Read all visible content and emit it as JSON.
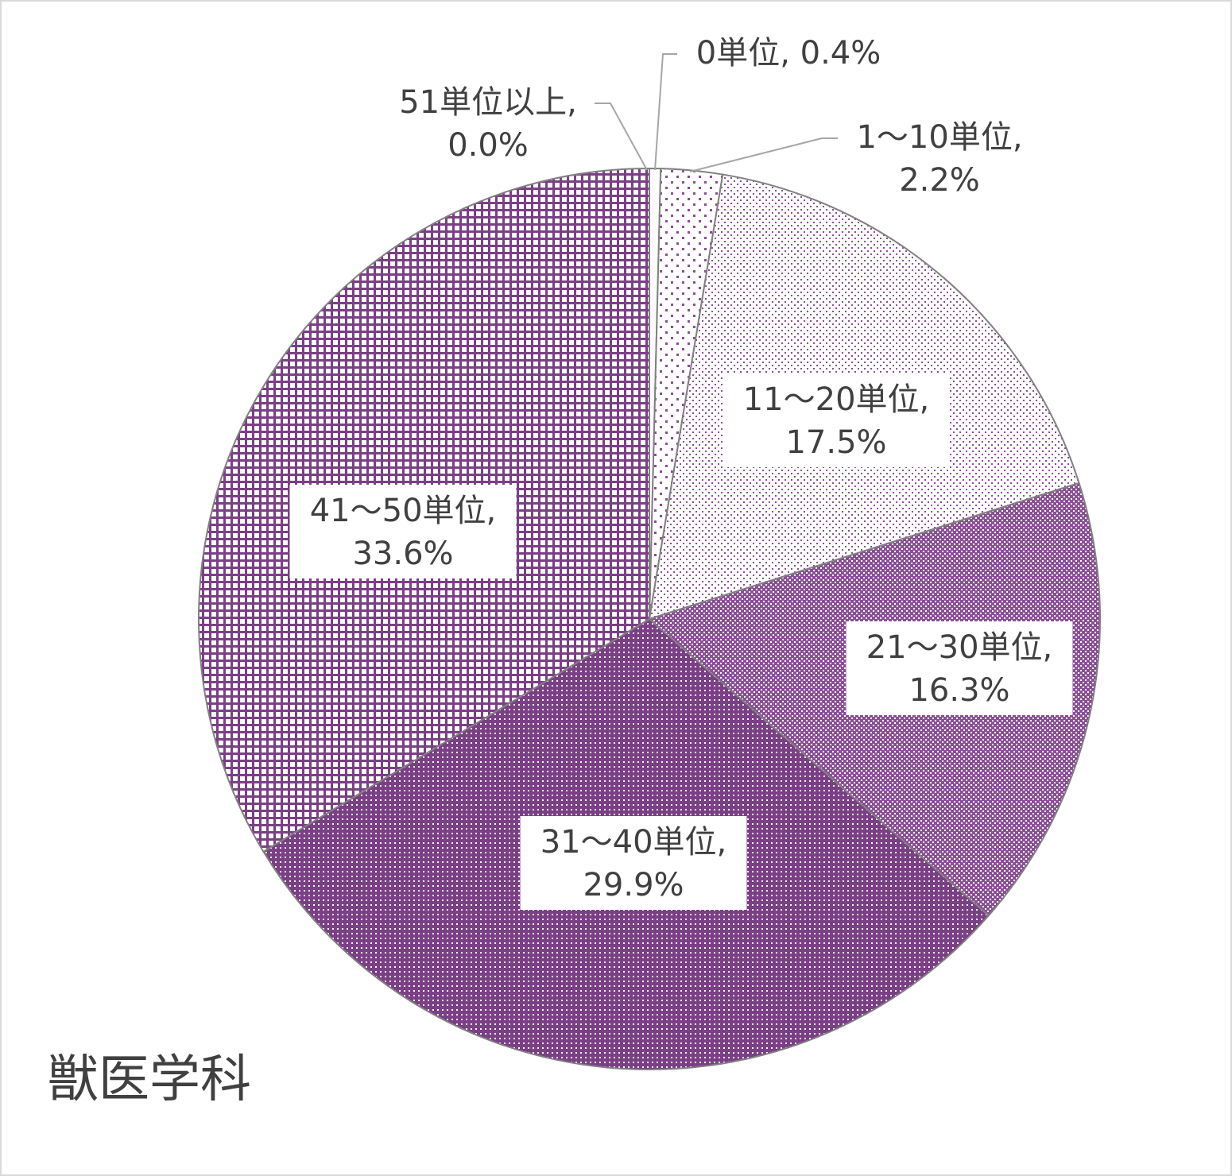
{
  "chart_data": {
    "type": "pie",
    "title": "",
    "department": "獣医学科",
    "unit": "%",
    "slices": [
      {
        "name": "0単位",
        "value": 0.4,
        "value_label": "0.4%",
        "pattern": "pat-white"
      },
      {
        "name": "1～10単位",
        "value": 2.2,
        "value_label": "2.2%",
        "pattern": "pat-sparse"
      },
      {
        "name": "11～20単位",
        "value": 17.5,
        "value_label": "17.5%",
        "pattern": "pat-fine"
      },
      {
        "name": "21～30単位",
        "value": 16.3,
        "value_label": "16.3%",
        "pattern": "pat-medium"
      },
      {
        "name": "31～40単位",
        "value": 29.9,
        "value_label": "29.9%",
        "pattern": "pat-dense"
      },
      {
        "name": "41～50単位",
        "value": 33.6,
        "value_label": "33.6%",
        "pattern": "pat-grid"
      },
      {
        "name": "51単位以上",
        "value": 0.0,
        "value_label": "0.0%",
        "pattern": "pat-white"
      }
    ],
    "colors": {
      "accent": "#7b3f86",
      "border": "#808080",
      "leader": "#a6a6a6",
      "text": "#404040"
    }
  }
}
